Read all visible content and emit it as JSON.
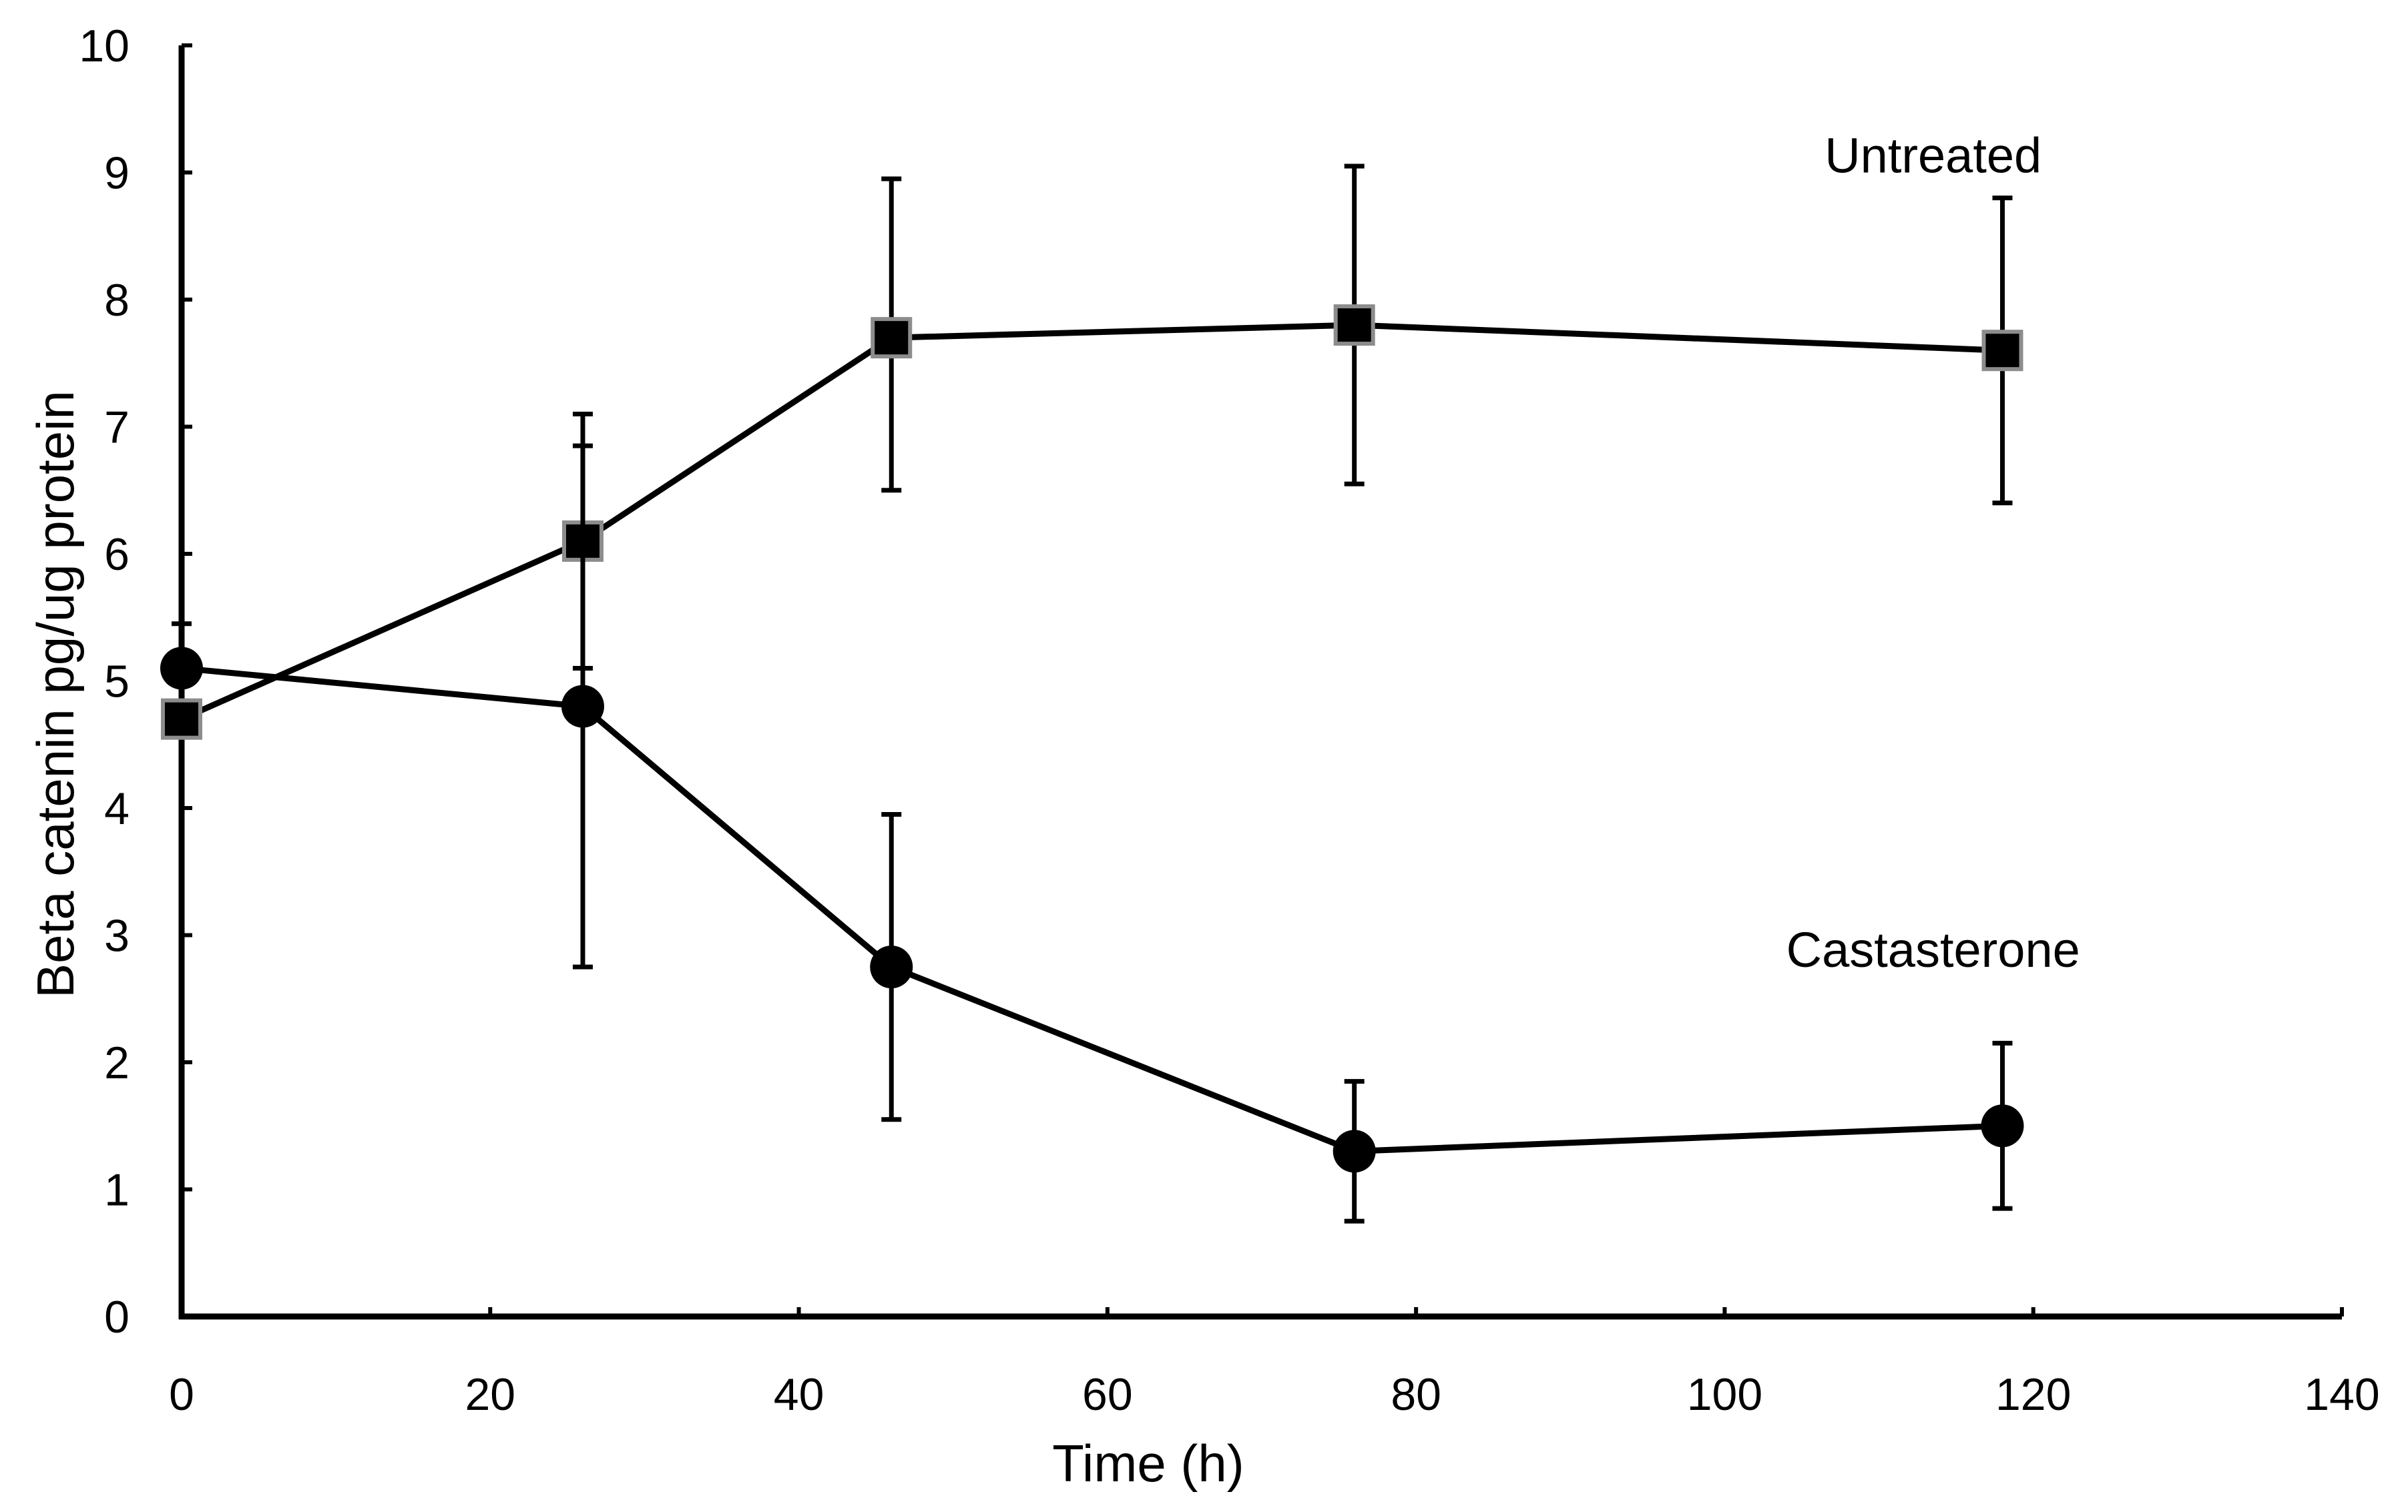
{
  "chart_data": {
    "type": "line",
    "title": "",
    "xlabel": "Time (h)",
    "ylabel": "Beta catenin pg/ug protein",
    "xlim": [
      0,
      140
    ],
    "ylim": [
      0,
      10
    ],
    "x_ticks": [
      0,
      20,
      40,
      60,
      80,
      100,
      120,
      140
    ],
    "y_ticks": [
      0,
      1,
      2,
      3,
      4,
      5,
      6,
      7,
      8,
      9,
      10
    ],
    "grid": false,
    "legend": "none",
    "colors": {
      "line": "#000000",
      "marker_fill": "#000000",
      "square_edge": "#8c8c8c"
    },
    "series": [
      {
        "name": "Untreated",
        "marker": "square",
        "label_text": "Untreated",
        "label_at": [
          120,
          9.0
        ],
        "x": [
          0,
          26,
          46,
          76,
          118
        ],
        "y": [
          4.7,
          6.1,
          7.7,
          7.8,
          7.6
        ],
        "err_low": [
          0.0,
          1.0,
          1.2,
          1.25,
          1.2
        ],
        "err_high": [
          0.0,
          1.0,
          1.25,
          1.25,
          1.2
        ]
      },
      {
        "name": "Castasterone",
        "marker": "circle",
        "label_text": "Castasterone",
        "label_at": [
          120,
          2.75
        ],
        "x": [
          0,
          26,
          46,
          76,
          118
        ],
        "y": [
          5.1,
          4.8,
          2.75,
          1.3,
          1.5
        ],
        "err_low": [
          0.0,
          2.05,
          1.2,
          0.55,
          0.65
        ],
        "err_high": [
          0.35,
          2.05,
          1.2,
          0.55,
          0.65
        ]
      }
    ]
  }
}
